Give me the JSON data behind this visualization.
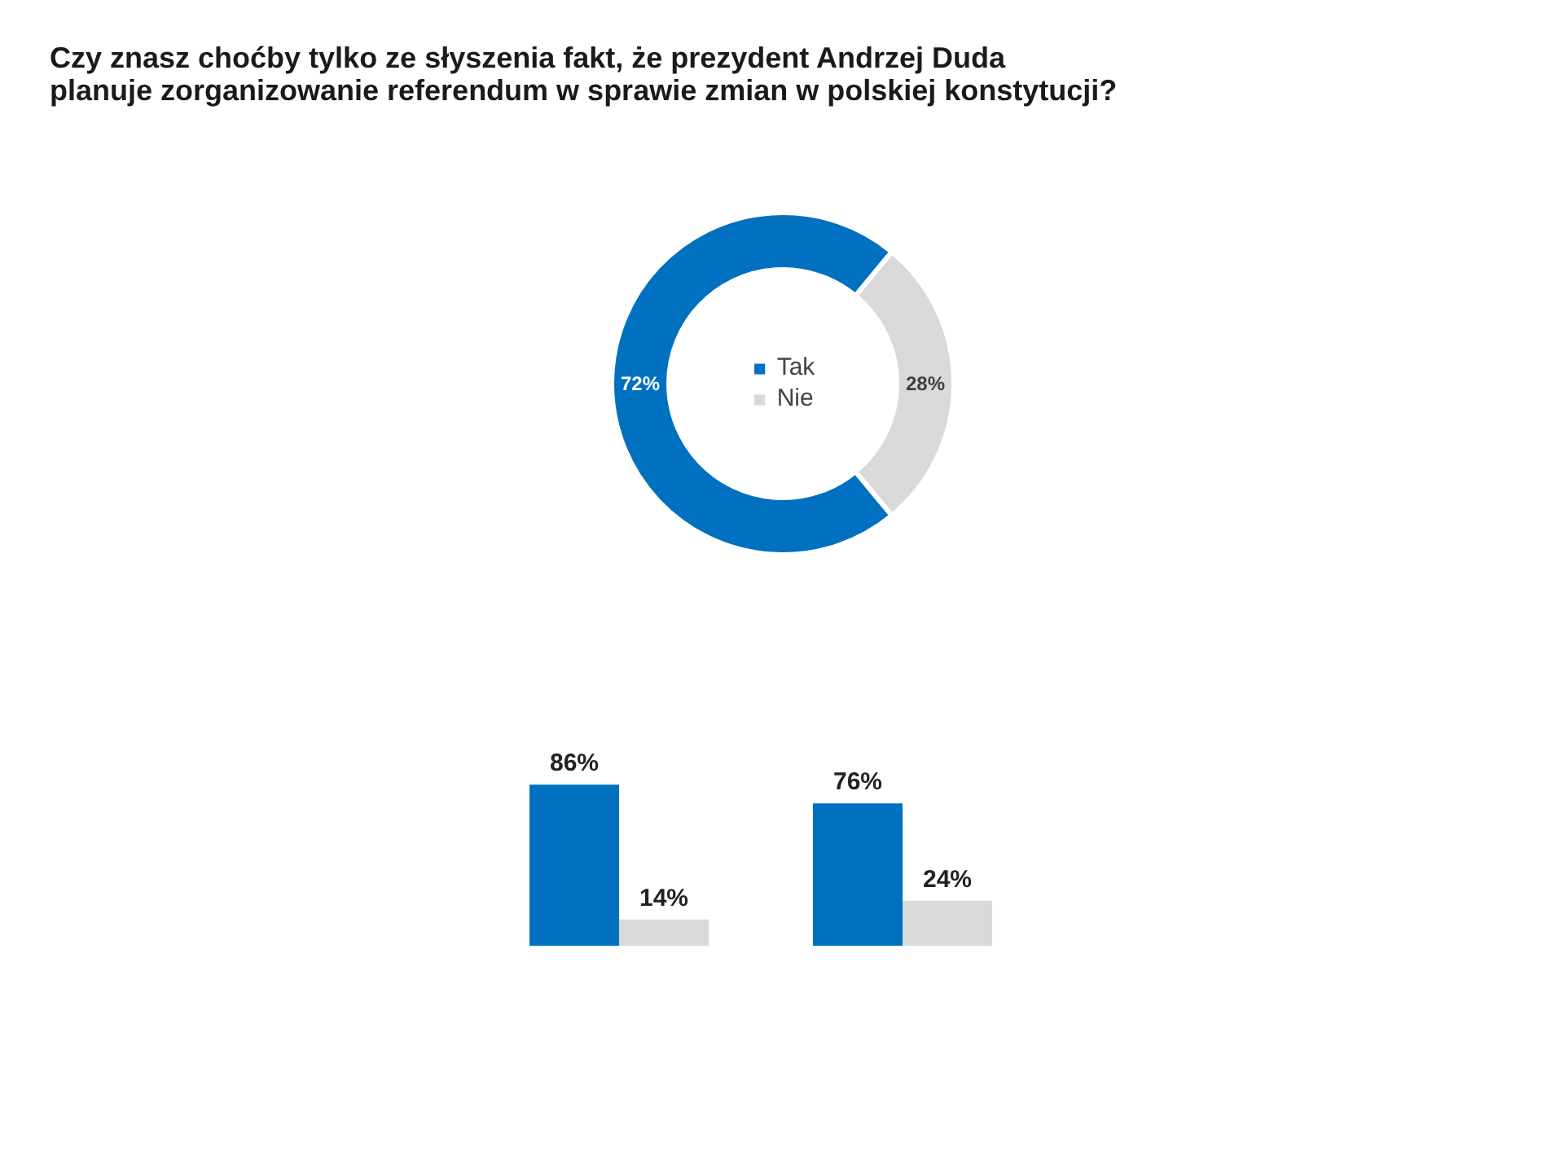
{
  "chart_data": [
    {
      "type": "donut",
      "title": "Czy znasz choćby tylko ze słyszenia fakt, że prezydent Andrzej Duda\nplanuje zorganizowanie referendum w sprawie zmian w polskiej konstytucji?",
      "categories": [
        "Tak",
        "Nie"
      ],
      "values": [
        72,
        28
      ],
      "colors": [
        "#0070c0",
        "#d9d9d9"
      ],
      "value_labels": [
        "72%",
        "28%"
      ],
      "legend": "center"
    },
    {
      "type": "bar",
      "categories": [
        null,
        null
      ],
      "series": [
        {
          "color": "#0070c0",
          "values": [
            86,
            76
          ],
          "value_labels": [
            "86%",
            "76%"
          ]
        },
        {
          "color": "#d9d9d9",
          "values": [
            14,
            24
          ],
          "value_labels": [
            "14%",
            "24%"
          ]
        }
      ]
    }
  ]
}
